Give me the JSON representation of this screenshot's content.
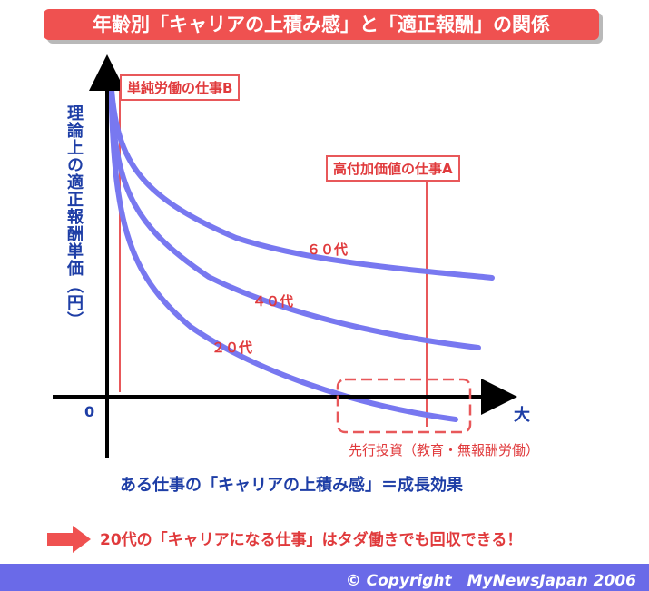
{
  "title": "年齢別「キャリアの上積み感」と「適正報酬」の関係",
  "y_axis_label": "理論上の適正報酬単価（円）",
  "x_axis_caption": "ある仕事の「キャリアの上積み感」＝成長効果",
  "origin_label": "0",
  "x_axis_end_label": "大",
  "job_b_label": "単純労働の仕事B",
  "job_a_label": "高付加価値の仕事A",
  "curves": {
    "age60": "６０代",
    "age40": "４０代",
    "age20": "２０代"
  },
  "investment_label": "先行投資（教育・無報酬労働）",
  "bottom_message": "20代の「キャリアになる仕事」はタダ働きでも回収できる！",
  "copyright": "© Copyright　MyNewsJapan 2006",
  "colors": {
    "accent_red": "#ef5150",
    "curve_blue": "#7878f0",
    "text_blue": "#1e3ea6",
    "footer_bar": "#6a6ae8"
  },
  "icons": {
    "bottom_arrow": "right-arrow-icon"
  }
}
